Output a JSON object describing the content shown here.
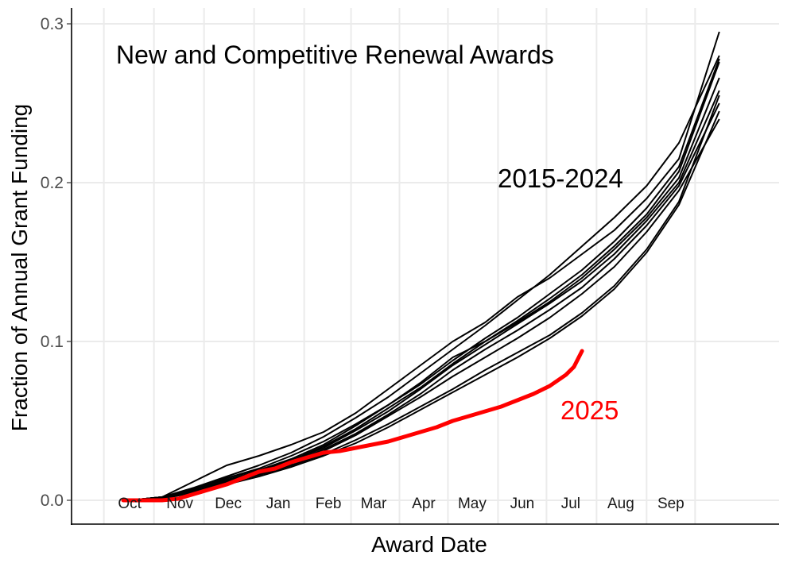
{
  "chart_data": {
    "type": "line",
    "title": "New and Competitive Renewal Awards",
    "xlabel": "Award Date",
    "ylabel": "Fraction of Annual Grant Funding",
    "ylim": [
      -0.015,
      0.31
    ],
    "yticks": [
      "0.0",
      "0.1",
      "0.2",
      "0.3"
    ],
    "ytick_values": [
      0.0,
      0.1,
      0.2,
      0.3
    ],
    "xlim_days": [
      -36,
      402
    ],
    "x_month_labels": [
      "Oct",
      "Nov",
      "Dec",
      "Jan",
      "Feb",
      "Mar",
      "Apr",
      "May",
      "Jun",
      "Jul",
      "Aug",
      "Sep"
    ],
    "x_month_starts_days": [
      0,
      31,
      61,
      92,
      123,
      151,
      182,
      212,
      243,
      273,
      304,
      335
    ],
    "x_minor_grid_days": [
      -16,
      15,
      46,
      77,
      108,
      137,
      167,
      197,
      228,
      258,
      289,
      320,
      350
    ],
    "grid": true,
    "annotations": [
      {
        "text": "2015-2024",
        "color": "#000000"
      },
      {
        "text": "2025",
        "color": "#ff0000"
      }
    ],
    "colors": {
      "historical": "#000000",
      "current": "#ff0000",
      "grid": "#ebebeb"
    },
    "series_x_days": [
      0,
      20,
      40,
      60,
      80,
      100,
      120,
      140,
      160,
      180,
      200,
      220,
      240,
      260,
      280,
      300,
      320,
      340,
      365
    ],
    "series": [
      {
        "group": "historical",
        "values": [
          0,
          0.002,
          0.012,
          0.022,
          0.028,
          0.035,
          0.043,
          0.055,
          0.07,
          0.085,
          0.1,
          0.112,
          0.128,
          0.14,
          0.155,
          0.17,
          0.19,
          0.215,
          0.295
        ]
      },
      {
        "group": "historical",
        "values": [
          0,
          0.002,
          0.008,
          0.015,
          0.022,
          0.03,
          0.04,
          0.052,
          0.065,
          0.08,
          0.095,
          0.11,
          0.126,
          0.142,
          0.16,
          0.178,
          0.198,
          0.225,
          0.28
        ]
      },
      {
        "group": "historical",
        "values": [
          0,
          0.002,
          0.007,
          0.014,
          0.02,
          0.028,
          0.037,
          0.048,
          0.06,
          0.073,
          0.088,
          0.102,
          0.115,
          0.13,
          0.145,
          0.163,
          0.184,
          0.21,
          0.278
        ]
      },
      {
        "group": "historical",
        "values": [
          0,
          0.002,
          0.007,
          0.014,
          0.019,
          0.026,
          0.035,
          0.047,
          0.06,
          0.074,
          0.09,
          0.1,
          0.113,
          0.127,
          0.142,
          0.16,
          0.18,
          0.207,
          0.276
        ]
      },
      {
        "group": "historical",
        "values": [
          0,
          0.002,
          0.007,
          0.013,
          0.018,
          0.025,
          0.034,
          0.045,
          0.058,
          0.071,
          0.086,
          0.1,
          0.112,
          0.125,
          0.14,
          0.158,
          0.178,
          0.203,
          0.266
        ]
      },
      {
        "group": "historical",
        "values": [
          0,
          0.002,
          0.006,
          0.012,
          0.018,
          0.025,
          0.033,
          0.044,
          0.056,
          0.07,
          0.085,
          0.098,
          0.111,
          0.124,
          0.138,
          0.155,
          0.176,
          0.2,
          0.258
        ]
      },
      {
        "group": "historical",
        "values": [
          0,
          0.002,
          0.006,
          0.012,
          0.017,
          0.024,
          0.032,
          0.042,
          0.054,
          0.067,
          0.082,
          0.095,
          0.107,
          0.12,
          0.134,
          0.152,
          0.173,
          0.198,
          0.25
        ]
      },
      {
        "group": "historical",
        "values": [
          0,
          0.002,
          0.006,
          0.012,
          0.017,
          0.023,
          0.031,
          0.041,
          0.053,
          0.065,
          0.078,
          0.09,
          0.102,
          0.115,
          0.13,
          0.147,
          0.169,
          0.195,
          0.24
        ]
      },
      {
        "group": "historical",
        "values": [
          0,
          0.001,
          0.005,
          0.011,
          0.016,
          0.022,
          0.029,
          0.038,
          0.048,
          0.059,
          0.07,
          0.082,
          0.093,
          0.104,
          0.118,
          0.135,
          0.158,
          0.188,
          0.255
        ]
      },
      {
        "group": "historical",
        "values": [
          0,
          0.001,
          0.005,
          0.01,
          0.015,
          0.021,
          0.028,
          0.036,
          0.046,
          0.057,
          0.068,
          0.079,
          0.09,
          0.102,
          0.116,
          0.133,
          0.156,
          0.186,
          0.245
        ]
      }
    ],
    "current": {
      "group": "current",
      "x_days": [
        -4,
        10,
        20,
        30,
        40,
        50,
        60,
        70,
        80,
        90,
        100,
        110,
        120,
        130,
        140,
        150,
        160,
        170,
        180,
        190,
        200,
        210,
        220,
        230,
        240,
        250,
        260,
        270,
        275,
        280
      ],
      "values": [
        0,
        0,
        0,
        0.001,
        0.004,
        0.007,
        0.01,
        0.014,
        0.018,
        0.02,
        0.024,
        0.027,
        0.03,
        0.031,
        0.033,
        0.035,
        0.037,
        0.04,
        0.043,
        0.046,
        0.05,
        0.053,
        0.056,
        0.059,
        0.063,
        0.067,
        0.072,
        0.079,
        0.084,
        0.094
      ]
    }
  }
}
